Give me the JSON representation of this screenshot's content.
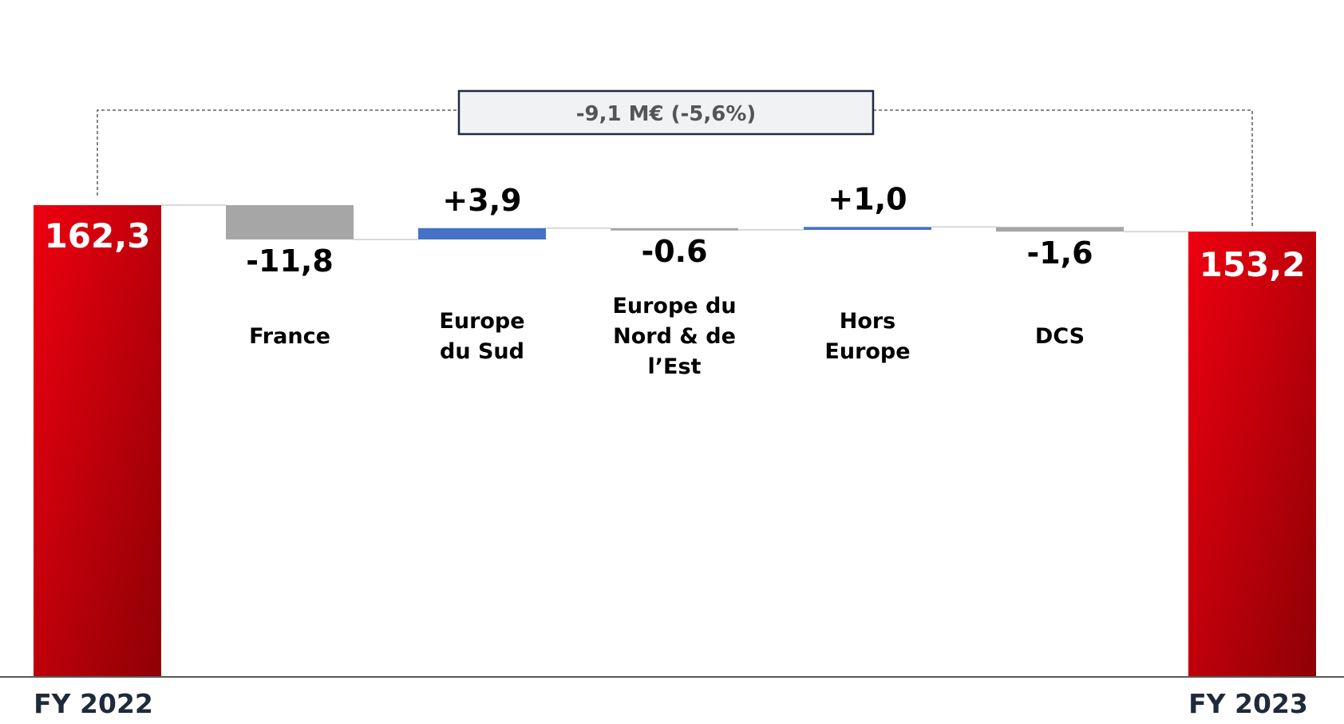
{
  "chart_data": {
    "type": "bar",
    "subtype": "waterfall",
    "title": "",
    "xlabel": "",
    "ylabel": "",
    "ylim": [
      0,
      162.3
    ],
    "grid": false,
    "legend": "none",
    "start": {
      "category": "FY 2022",
      "value": 162.3,
      "label": "162,3"
    },
    "end": {
      "category": "FY 2023",
      "value": 153.2,
      "label": "153,2"
    },
    "steps": [
      {
        "category": [
          "France"
        ],
        "value": -11.8,
        "label": "-11,8"
      },
      {
        "category": [
          "Europe",
          "du Sud"
        ],
        "value": 3.9,
        "label": "+3,9"
      },
      {
        "category": [
          "Europe du",
          "Nord & de",
          "l’Est"
        ],
        "value": -0.6,
        "label": "-0.6"
      },
      {
        "category": [
          "Hors",
          "Europe"
        ],
        "value": 1.0,
        "label": "+1,0"
      },
      {
        "category": [
          "DCS"
        ],
        "value": -1.6,
        "label": "-1,6"
      }
    ],
    "annotation": {
      "text": "-9,1 M€ (-5,6%)"
    },
    "colors": {
      "total_top": "#ee0010",
      "total_bottom": "#8e0005",
      "negative": "#a6a6a6",
      "positive": "#4472c4",
      "connector": "#d9d9d9",
      "axis": "#595959",
      "annotation_border": "#1f2a44",
      "annotation_fill": "#f1f2f4"
    }
  }
}
